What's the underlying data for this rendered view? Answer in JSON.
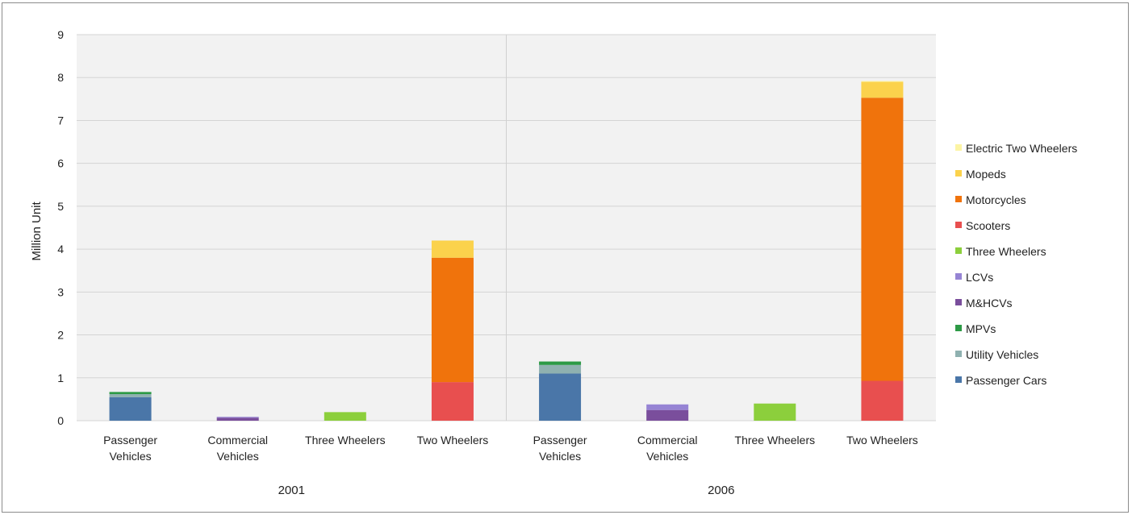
{
  "chart_data": {
    "type": "bar",
    "stacked": true,
    "ylabel": "Million Unit",
    "ylim": [
      0,
      9
    ],
    "yticks": [
      "0",
      "1",
      "2",
      "3",
      "4",
      "5",
      "6",
      "7",
      "8",
      "9"
    ],
    "grid": true,
    "legend_position": "right",
    "groups": [
      "2001",
      "2006"
    ],
    "categories": [
      {
        "label_lines": [
          "Passenger",
          "Vehicles"
        ],
        "group": "2001"
      },
      {
        "label_lines": [
          "Commercial",
          "Vehicles"
        ],
        "group": "2001"
      },
      {
        "label_lines": [
          "Three Wheelers"
        ],
        "group": "2001"
      },
      {
        "label_lines": [
          "Two Wheelers"
        ],
        "group": "2001"
      },
      {
        "label_lines": [
          "Passenger",
          "Vehicles"
        ],
        "group": "2006"
      },
      {
        "label_lines": [
          "Commercial",
          "Vehicles"
        ],
        "group": "2006"
      },
      {
        "label_lines": [
          "Three Wheelers"
        ],
        "group": "2006"
      },
      {
        "label_lines": [
          "Two Wheelers"
        ],
        "group": "2006"
      }
    ],
    "series": [
      {
        "name": "Passenger Cars",
        "color": "#4a76a8",
        "values": [
          0.55,
          0,
          0,
          0,
          1.1,
          0,
          0,
          0
        ]
      },
      {
        "name": "Utility Vehicles",
        "color": "#8fb1b0",
        "values": [
          0.07,
          0,
          0,
          0,
          0.2,
          0,
          0,
          0
        ]
      },
      {
        "name": "MPVs",
        "color": "#2d9a46",
        "values": [
          0.05,
          0,
          0,
          0,
          0.08,
          0,
          0,
          0
        ]
      },
      {
        "name": "M&HCVs",
        "color": "#7a4e9c",
        "values": [
          0,
          0.07,
          0,
          0,
          0,
          0.25,
          0,
          0
        ]
      },
      {
        "name": "LCVs",
        "color": "#9684d4",
        "values": [
          0,
          0.02,
          0,
          0,
          0,
          0.13,
          0,
          0
        ]
      },
      {
        "name": "Three Wheelers",
        "color": "#8ccf3c",
        "values": [
          0,
          0,
          0.2,
          0,
          0,
          0,
          0.4,
          0
        ]
      },
      {
        "name": "Scooters",
        "color": "#e84f4f",
        "values": [
          0,
          0,
          0,
          0.9,
          0,
          0,
          0,
          0.93
        ]
      },
      {
        "name": "Motorcycles",
        "color": "#f0730c",
        "values": [
          0,
          0,
          0,
          2.9,
          0,
          0,
          0,
          6.6
        ]
      },
      {
        "name": "Mopeds",
        "color": "#fbd24c",
        "values": [
          0,
          0,
          0,
          0.4,
          0,
          0,
          0,
          0.37
        ]
      },
      {
        "name": "Electric Two Wheelers",
        "color": "#fcf4a4",
        "values": [
          0,
          0,
          0,
          0,
          0,
          0,
          0,
          0.02
        ]
      }
    ],
    "legend_order": [
      "Electric Two Wheelers",
      "Mopeds",
      "Motorcycles",
      "Scooters",
      "Three Wheelers",
      "LCVs",
      "M&HCVs",
      "MPVs",
      "Utility Vehicles",
      "Passenger Cars"
    ]
  }
}
